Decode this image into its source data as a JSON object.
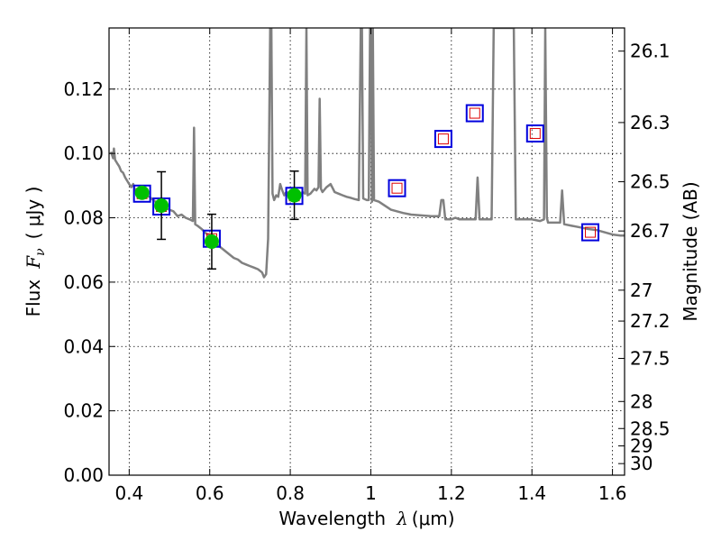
{
  "chart_data": {
    "type": "scatter",
    "title": "",
    "xlabel": {
      "prefix": "Wavelength",
      "symbol": "λ",
      "unit": "(μm)"
    },
    "ylabel": {
      "prefix": "Flux",
      "symbol": "F",
      "subscript": "ν",
      "unit": "( μJy )"
    },
    "y2label": "Magnitude (AB)",
    "xlim": [
      0.35,
      1.63
    ],
    "ylim": [
      0.0,
      0.139
    ],
    "x_ticks": [
      0.4,
      0.6,
      0.8,
      1.0,
      1.2,
      1.4,
      1.6
    ],
    "x_tick_labels": [
      "0.4",
      "0.6",
      "0.8",
      "1",
      "1.2",
      "1.4",
      "1.6"
    ],
    "y_ticks": [
      0.0,
      0.02,
      0.04,
      0.06,
      0.08,
      0.1,
      0.12
    ],
    "y_tick_labels": [
      "0.00",
      "0.02",
      "0.04",
      "0.06",
      "0.08",
      "0.10",
      "0.12"
    ],
    "y2_ticks": [
      {
        "label": "26.1",
        "flux": 0.1318
      },
      {
        "label": "26.3",
        "flux": 0.1096
      },
      {
        "label": "26.5",
        "flux": 0.0912
      },
      {
        "label": "26.7",
        "flux": 0.0759
      },
      {
        "label": "27",
        "flux": 0.0575
      },
      {
        "label": "27.2",
        "flux": 0.0479
      },
      {
        "label": "27.5",
        "flux": 0.0363
      },
      {
        "label": "28",
        "flux": 0.0229
      },
      {
        "label": "28.5",
        "flux": 0.0145
      },
      {
        "label": "29",
        "flux": 0.0091
      },
      {
        "label": "30",
        "flux": 0.0036
      }
    ],
    "grid": true,
    "colors": {
      "spectrum": "#808080",
      "observed": "#00c000",
      "model_square": "#0000dd",
      "model_inner": "#dd0000",
      "errorbar": "#000000"
    },
    "series": [
      {
        "kind": "line",
        "points": [
          [
            0.355,
            0.1005
          ],
          [
            0.36,
            0.0985
          ],
          [
            0.362,
            0.1015
          ],
          [
            0.365,
            0.098
          ],
          [
            0.37,
            0.097
          ],
          [
            0.375,
            0.096
          ],
          [
            0.38,
            0.0945
          ],
          [
            0.385,
            0.094
          ],
          [
            0.39,
            0.0925
          ],
          [
            0.395,
            0.0915
          ],
          [
            0.4,
            0.0905
          ],
          [
            0.405,
            0.0895
          ],
          [
            0.41,
            0.0905
          ],
          [
            0.415,
            0.0885
          ],
          [
            0.42,
            0.089
          ],
          [
            0.425,
            0.088
          ],
          [
            0.43,
            0.0875
          ],
          [
            0.44,
            0.087
          ],
          [
            0.45,
            0.0865
          ],
          [
            0.46,
            0.0855
          ],
          [
            0.47,
            0.0845
          ],
          [
            0.48,
            0.084
          ],
          [
            0.49,
            0.083
          ],
          [
            0.5,
            0.0825
          ],
          [
            0.51,
            0.082
          ],
          [
            0.52,
            0.0805
          ],
          [
            0.53,
            0.081
          ],
          [
            0.54,
            0.08
          ],
          [
            0.55,
            0.0795
          ],
          [
            0.558,
            0.079
          ],
          [
            0.561,
            0.108
          ],
          [
            0.564,
            0.078
          ],
          [
            0.57,
            0.0775
          ],
          [
            0.58,
            0.0765
          ],
          [
            0.59,
            0.0752
          ],
          [
            0.6,
            0.0745
          ],
          [
            0.61,
            0.073
          ],
          [
            0.62,
            0.0715
          ],
          [
            0.63,
            0.0705
          ],
          [
            0.64,
            0.0695
          ],
          [
            0.65,
            0.0685
          ],
          [
            0.66,
            0.0675
          ],
          [
            0.67,
            0.067
          ],
          [
            0.68,
            0.066
          ],
          [
            0.69,
            0.0655
          ],
          [
            0.7,
            0.065
          ],
          [
            0.71,
            0.0645
          ],
          [
            0.72,
            0.064
          ],
          [
            0.73,
            0.063
          ],
          [
            0.735,
            0.0615
          ],
          [
            0.74,
            0.0625
          ],
          [
            0.745,
            0.0735
          ],
          [
            0.75,
            0.139
          ],
          [
            0.753,
            0.139
          ],
          [
            0.756,
            0.0875
          ],
          [
            0.76,
            0.0855
          ],
          [
            0.765,
            0.087
          ],
          [
            0.77,
            0.0865
          ],
          [
            0.775,
            0.0905
          ],
          [
            0.78,
            0.0885
          ],
          [
            0.785,
            0.087
          ],
          [
            0.79,
            0.088
          ],
          [
            0.8,
            0.0875
          ],
          [
            0.81,
            0.087
          ],
          [
            0.82,
            0.0865
          ],
          [
            0.83,
            0.088
          ],
          [
            0.837,
            0.0875
          ],
          [
            0.84,
            0.139
          ],
          [
            0.843,
            0.087
          ],
          [
            0.85,
            0.0875
          ],
          [
            0.86,
            0.089
          ],
          [
            0.865,
            0.0885
          ],
          [
            0.87,
            0.0895
          ],
          [
            0.873,
            0.117
          ],
          [
            0.876,
            0.089
          ],
          [
            0.88,
            0.088
          ],
          [
            0.89,
            0.0895
          ],
          [
            0.9,
            0.0905
          ],
          [
            0.91,
            0.088
          ],
          [
            0.92,
            0.0875
          ],
          [
            0.93,
            0.087
          ],
          [
            0.94,
            0.0865
          ],
          [
            0.95,
            0.0862
          ],
          [
            0.96,
            0.0858
          ],
          [
            0.97,
            0.0855
          ],
          [
            0.975,
            0.139
          ],
          [
            0.978,
            0.139
          ],
          [
            0.981,
            0.086
          ],
          [
            0.99,
            0.0855
          ],
          [
            0.995,
            0.0855
          ],
          [
            0.998,
            0.139
          ],
          [
            1.0,
            0.139
          ],
          [
            1.003,
            0.085
          ],
          [
            1.005,
            0.139
          ],
          [
            1.008,
            0.0855
          ],
          [
            1.02,
            0.085
          ],
          [
            1.05,
            0.0825
          ],
          [
            1.08,
            0.0815
          ],
          [
            1.1,
            0.081
          ],
          [
            1.15,
            0.0805
          ],
          [
            1.17,
            0.0805
          ],
          [
            1.175,
            0.0855
          ],
          [
            1.18,
            0.0855
          ],
          [
            1.185,
            0.0795
          ],
          [
            1.2,
            0.0795
          ],
          [
            1.21,
            0.08
          ],
          [
            1.22,
            0.0795
          ],
          [
            1.25,
            0.0795
          ],
          [
            1.26,
            0.0795
          ],
          [
            1.265,
            0.0925
          ],
          [
            1.27,
            0.0795
          ],
          [
            1.3,
            0.0795
          ],
          [
            1.305,
            0.139
          ],
          [
            1.33,
            0.139
          ],
          [
            1.34,
            0.139
          ],
          [
            1.35,
            0.139
          ],
          [
            1.355,
            0.139
          ],
          [
            1.36,
            0.0795
          ],
          [
            1.38,
            0.0795
          ],
          [
            1.4,
            0.0795
          ],
          [
            1.42,
            0.079
          ],
          [
            1.43,
            0.0795
          ],
          [
            1.433,
            0.139
          ],
          [
            1.437,
            0.08
          ],
          [
            1.44,
            0.0785
          ],
          [
            1.46,
            0.0785
          ],
          [
            1.47,
            0.0785
          ],
          [
            1.475,
            0.0885
          ],
          [
            1.48,
            0.078
          ],
          [
            1.5,
            0.0775
          ],
          [
            1.52,
            0.077
          ],
          [
            1.54,
            0.0765
          ],
          [
            1.56,
            0.0762
          ],
          [
            1.58,
            0.0755
          ],
          [
            1.6,
            0.0748
          ],
          [
            1.62,
            0.0745
          ],
          [
            1.63,
            0.0745
          ]
        ]
      },
      {
        "kind": "model_squares",
        "points": [
          [
            0.432,
            0.0875
          ],
          [
            0.48,
            0.0835
          ],
          [
            0.605,
            0.0735
          ],
          [
            0.81,
            0.0868
          ],
          [
            1.065,
            0.0892
          ],
          [
            1.18,
            0.1045
          ],
          [
            1.258,
            0.1125
          ],
          [
            1.408,
            0.1062
          ],
          [
            1.545,
            0.0755
          ]
        ]
      },
      {
        "kind": "observed",
        "points": [
          {
            "x": 0.432,
            "y": 0.0878,
            "err": 0.0
          },
          {
            "x": 0.48,
            "y": 0.0838,
            "err": 0.0105
          },
          {
            "x": 0.605,
            "y": 0.0726,
            "err": 0.0085
          },
          {
            "x": 0.81,
            "y": 0.087,
            "err": 0.0075
          }
        ]
      }
    ]
  }
}
